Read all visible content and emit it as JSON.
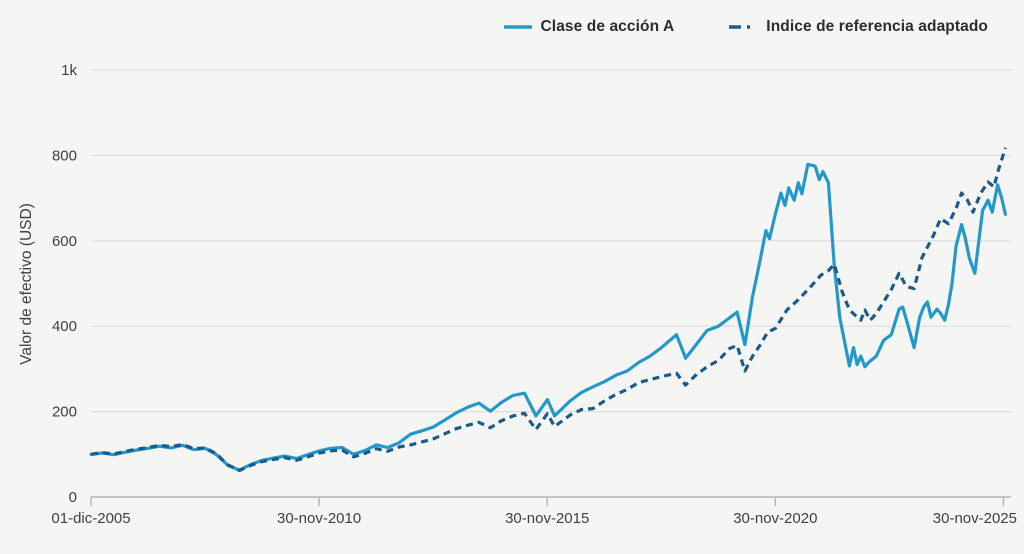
{
  "legend": {
    "series_a_label": "Clase de acción A",
    "benchmark_label": "Indice de referencia adaptado"
  },
  "colors": {
    "background": "#f5f5f3",
    "gridline": "#dddddb",
    "axis_line": "#b4b4b2",
    "tick_text": "#3f3f3f",
    "legend_text": "#2d2d2d",
    "series_a": "#2498c9",
    "benchmark": "#1a5b8c"
  },
  "chart_data": {
    "type": "line",
    "title": "",
    "xlabel": "",
    "ylabel": "Valor de efectivo (USD)",
    "x_unit": "decimal_year",
    "x_range": [
      2005.917,
      2026.083
    ],
    "ylim": [
      0,
      1000
    ],
    "grid": "horizontal",
    "legend_position": "top",
    "y_ticks": [
      {
        "v": 0,
        "label": "0"
      },
      {
        "v": 200,
        "label": "200"
      },
      {
        "v": 400,
        "label": "400"
      },
      {
        "v": 600,
        "label": "600"
      },
      {
        "v": 800,
        "label": "800"
      },
      {
        "v": 1000,
        "label": "1k"
      }
    ],
    "x_ticks": [
      {
        "t": 2005.917,
        "label": "01-dic-2005"
      },
      {
        "t": 2010.917,
        "label": "30-nov-2010"
      },
      {
        "t": 2015.917,
        "label": "30-nov-2015"
      },
      {
        "t": 2020.917,
        "label": "30-nov-2020"
      },
      {
        "t": 2025.917,
        "label": "30-nov-2025"
      }
    ],
    "series": [
      {
        "name": "Clase de acción A",
        "style": "solid",
        "color": "#2498c9",
        "points": [
          [
            2005.92,
            100
          ],
          [
            2006.17,
            103
          ],
          [
            2006.42,
            99
          ],
          [
            2006.67,
            105
          ],
          [
            2006.92,
            110
          ],
          [
            2007.17,
            114
          ],
          [
            2007.42,
            119
          ],
          [
            2007.67,
            115
          ],
          [
            2007.92,
            121
          ],
          [
            2008.17,
            111
          ],
          [
            2008.42,
            114
          ],
          [
            2008.67,
            99
          ],
          [
            2008.92,
            74
          ],
          [
            2009.17,
            63
          ],
          [
            2009.42,
            76
          ],
          [
            2009.67,
            86
          ],
          [
            2009.92,
            91
          ],
          [
            2010.17,
            96
          ],
          [
            2010.42,
            90
          ],
          [
            2010.67,
            99
          ],
          [
            2010.92,
            108
          ],
          [
            2011.17,
            114
          ],
          [
            2011.42,
            116
          ],
          [
            2011.67,
            100
          ],
          [
            2011.92,
            109
          ],
          [
            2012.17,
            122
          ],
          [
            2012.42,
            116
          ],
          [
            2012.67,
            127
          ],
          [
            2012.92,
            147
          ],
          [
            2013.17,
            155
          ],
          [
            2013.42,
            164
          ],
          [
            2013.67,
            180
          ],
          [
            2013.92,
            197
          ],
          [
            2014.17,
            210
          ],
          [
            2014.42,
            220
          ],
          [
            2014.67,
            201
          ],
          [
            2014.92,
            222
          ],
          [
            2015.17,
            238
          ],
          [
            2015.42,
            243
          ],
          [
            2015.67,
            190
          ],
          [
            2015.92,
            228
          ],
          [
            2016.08,
            190
          ],
          [
            2016.42,
            225
          ],
          [
            2016.67,
            245
          ],
          [
            2016.92,
            258
          ],
          [
            2017.17,
            270
          ],
          [
            2017.42,
            285
          ],
          [
            2017.67,
            295
          ],
          [
            2017.92,
            315
          ],
          [
            2018.17,
            330
          ],
          [
            2018.42,
            350
          ],
          [
            2018.75,
            380
          ],
          [
            2018.95,
            325
          ],
          [
            2019.17,
            355
          ],
          [
            2019.42,
            390
          ],
          [
            2019.67,
            400
          ],
          [
            2019.92,
            420
          ],
          [
            2020.08,
            433
          ],
          [
            2020.25,
            357
          ],
          [
            2020.42,
            470
          ],
          [
            2020.58,
            552
          ],
          [
            2020.71,
            624
          ],
          [
            2020.79,
            605
          ],
          [
            2020.92,
            664
          ],
          [
            2021.04,
            712
          ],
          [
            2021.13,
            683
          ],
          [
            2021.21,
            724
          ],
          [
            2021.33,
            695
          ],
          [
            2021.42,
            736
          ],
          [
            2021.5,
            710
          ],
          [
            2021.63,
            779
          ],
          [
            2021.79,
            775
          ],
          [
            2021.88,
            743
          ],
          [
            2021.96,
            762
          ],
          [
            2022.08,
            736
          ],
          [
            2022.21,
            540
          ],
          [
            2022.33,
            420
          ],
          [
            2022.54,
            307
          ],
          [
            2022.63,
            350
          ],
          [
            2022.71,
            310
          ],
          [
            2022.79,
            330
          ],
          [
            2022.88,
            305
          ],
          [
            2022.96,
            315
          ],
          [
            2023.13,
            330
          ],
          [
            2023.29,
            367
          ],
          [
            2023.46,
            380
          ],
          [
            2023.63,
            440
          ],
          [
            2023.71,
            445
          ],
          [
            2023.83,
            400
          ],
          [
            2023.96,
            350
          ],
          [
            2024.08,
            420
          ],
          [
            2024.17,
            445
          ],
          [
            2024.25,
            457
          ],
          [
            2024.33,
            421
          ],
          [
            2024.46,
            440
          ],
          [
            2024.54,
            430
          ],
          [
            2024.63,
            414
          ],
          [
            2024.71,
            450
          ],
          [
            2024.79,
            500
          ],
          [
            2024.88,
            588
          ],
          [
            2025.0,
            638
          ],
          [
            2025.08,
            607
          ],
          [
            2025.17,
            560
          ],
          [
            2025.29,
            524
          ],
          [
            2025.46,
            671
          ],
          [
            2025.58,
            695
          ],
          [
            2025.67,
            667
          ],
          [
            2025.79,
            731
          ],
          [
            2025.88,
            700
          ],
          [
            2025.96,
            662
          ]
        ]
      },
      {
        "name": "Indice de referencia adaptado",
        "style": "dash",
        "color": "#1a5b8c",
        "points": [
          [
            2005.92,
            100
          ],
          [
            2006.17,
            104
          ],
          [
            2006.42,
            101
          ],
          [
            2006.67,
            107
          ],
          [
            2006.92,
            112
          ],
          [
            2007.17,
            116
          ],
          [
            2007.42,
            121
          ],
          [
            2007.67,
            118
          ],
          [
            2007.92,
            123
          ],
          [
            2008.17,
            113
          ],
          [
            2008.42,
            115
          ],
          [
            2008.67,
            101
          ],
          [
            2008.92,
            75
          ],
          [
            2009.17,
            62
          ],
          [
            2009.42,
            74
          ],
          [
            2009.67,
            83
          ],
          [
            2009.92,
            88
          ],
          [
            2010.17,
            92
          ],
          [
            2010.42,
            86
          ],
          [
            2010.67,
            94
          ],
          [
            2010.92,
            103
          ],
          [
            2011.17,
            108
          ],
          [
            2011.42,
            110
          ],
          [
            2011.67,
            94
          ],
          [
            2011.92,
            102
          ],
          [
            2012.17,
            113
          ],
          [
            2012.42,
            107
          ],
          [
            2012.67,
            117
          ],
          [
            2012.92,
            122
          ],
          [
            2013.17,
            129
          ],
          [
            2013.42,
            136
          ],
          [
            2013.67,
            148
          ],
          [
            2013.92,
            160
          ],
          [
            2014.17,
            168
          ],
          [
            2014.42,
            175
          ],
          [
            2014.67,
            162
          ],
          [
            2014.92,
            179
          ],
          [
            2015.17,
            190
          ],
          [
            2015.42,
            196
          ],
          [
            2015.67,
            158
          ],
          [
            2015.92,
            195
          ],
          [
            2016.08,
            165
          ],
          [
            2016.42,
            192
          ],
          [
            2016.67,
            205
          ],
          [
            2016.92,
            207
          ],
          [
            2017.17,
            225
          ],
          [
            2017.42,
            240
          ],
          [
            2017.67,
            252
          ],
          [
            2017.92,
            268
          ],
          [
            2018.17,
            275
          ],
          [
            2018.42,
            282
          ],
          [
            2018.75,
            290
          ],
          [
            2018.95,
            262
          ],
          [
            2019.17,
            285
          ],
          [
            2019.42,
            305
          ],
          [
            2019.67,
            320
          ],
          [
            2019.92,
            348
          ],
          [
            2020.08,
            355
          ],
          [
            2020.25,
            295
          ],
          [
            2020.42,
            330
          ],
          [
            2020.58,
            355
          ],
          [
            2020.75,
            386
          ],
          [
            2020.92,
            395
          ],
          [
            2021.17,
            438
          ],
          [
            2021.42,
            462
          ],
          [
            2021.67,
            490
          ],
          [
            2021.92,
            520
          ],
          [
            2022.08,
            530
          ],
          [
            2022.21,
            545
          ],
          [
            2022.38,
            481
          ],
          [
            2022.54,
            438
          ],
          [
            2022.79,
            414
          ],
          [
            2022.88,
            438
          ],
          [
            2023.0,
            414
          ],
          [
            2023.13,
            430
          ],
          [
            2023.29,
            457
          ],
          [
            2023.46,
            486
          ],
          [
            2023.63,
            524
          ],
          [
            2023.79,
            493
          ],
          [
            2023.96,
            488
          ],
          [
            2024.13,
            560
          ],
          [
            2024.38,
            612
          ],
          [
            2024.54,
            652
          ],
          [
            2024.71,
            640
          ],
          [
            2024.88,
            676
          ],
          [
            2025.0,
            712
          ],
          [
            2025.13,
            695
          ],
          [
            2025.25,
            667
          ],
          [
            2025.42,
            712
          ],
          [
            2025.58,
            738
          ],
          [
            2025.71,
            726
          ],
          [
            2025.79,
            760
          ],
          [
            2025.88,
            790
          ],
          [
            2025.96,
            818
          ]
        ]
      }
    ]
  }
}
